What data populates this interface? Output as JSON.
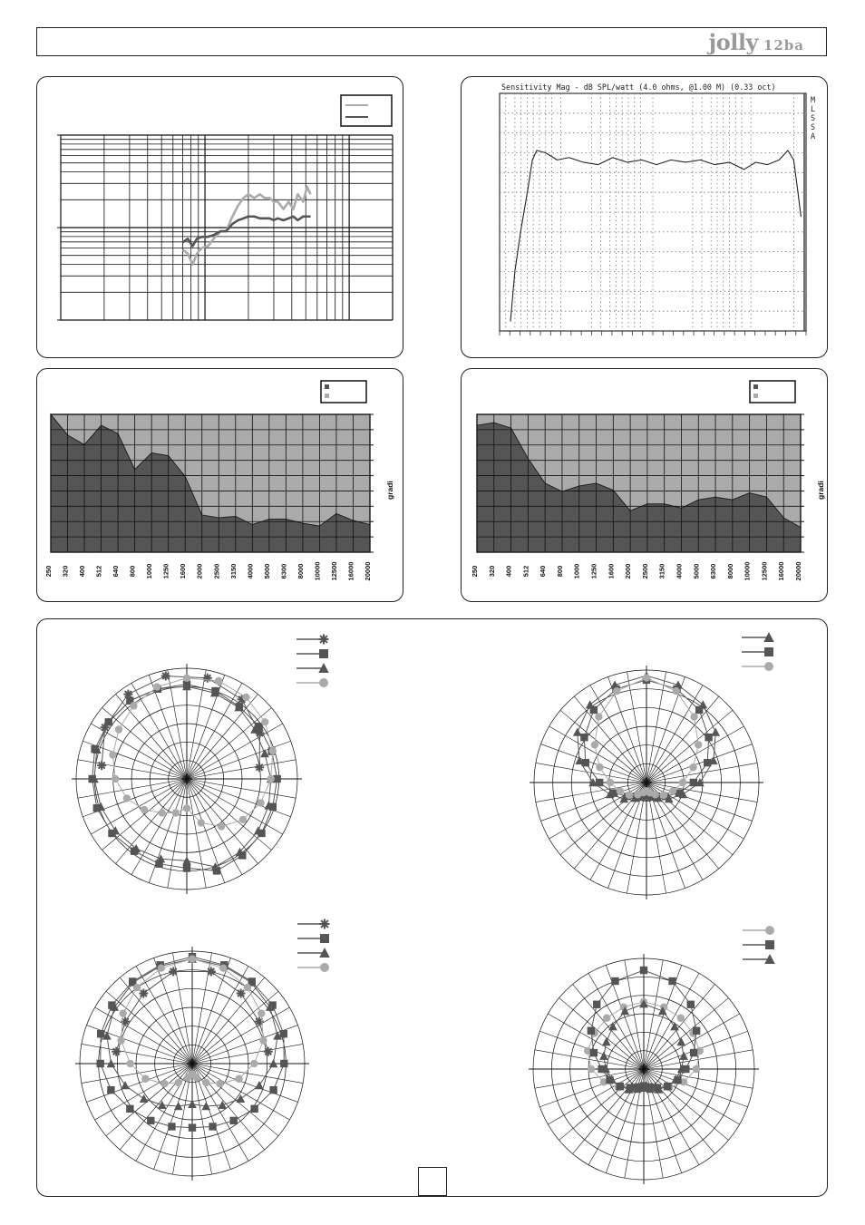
{
  "header": {
    "brand_name": "jolly",
    "brand_model": "12ba"
  },
  "colors": {
    "dark": "#555555",
    "light": "#aaaaaa",
    "grid": "#111111"
  },
  "chart_data": [
    {
      "id": "impedance-log",
      "type": "line",
      "grid": true,
      "x_scale": "log",
      "legend": {
        "placement": "top-right",
        "entries": [
          "",
          ""
        ]
      },
      "series": [
        {
          "color": "#aaaaaa",
          "x": [
            700,
            760,
            820,
            880,
            950,
            1050,
            1150,
            1280,
            1400,
            1550,
            1700,
            1850,
            2000,
            2200,
            2400,
            2600,
            2800,
            3000,
            3200,
            3500,
            3800,
            4100,
            4400,
            4800,
            5100,
            5400
          ],
          "y": [
            0.38,
            0.36,
            0.3,
            0.36,
            0.39,
            0.4,
            0.44,
            0.48,
            0.48,
            0.56,
            0.62,
            0.66,
            0.68,
            0.66,
            0.68,
            0.66,
            0.66,
            0.64,
            0.64,
            0.6,
            0.64,
            0.6,
            0.68,
            0.64,
            0.72,
            0.68
          ]
        },
        {
          "color": "#555555",
          "x": [
            700,
            760,
            820,
            880,
            950,
            1050,
            1150,
            1280,
            1400,
            1550,
            1700,
            1850,
            2000,
            2200,
            2400,
            2600,
            2800,
            3000,
            3200,
            3500,
            3800,
            4100,
            4400,
            4800,
            5100,
            5400
          ],
          "y": [
            0.42,
            0.44,
            0.4,
            0.44,
            0.45,
            0.45,
            0.46,
            0.48,
            0.48,
            0.52,
            0.54,
            0.55,
            0.56,
            0.56,
            0.55,
            0.55,
            0.55,
            0.54,
            0.55,
            0.54,
            0.55,
            0.56,
            0.54,
            0.56,
            0.56,
            0.56
          ]
        }
      ]
    },
    {
      "id": "sensitivity",
      "type": "line",
      "grid": true,
      "title": "Sensitivity Mag - dB SPL/watt (4.0 ohms, @1.00 M) (0.33 oct)",
      "side_letters": [
        "M",
        "L",
        "S",
        "S",
        "A"
      ],
      "x": [
        0,
        0.015,
        0.035,
        0.06,
        0.075,
        0.09,
        0.12,
        0.16,
        0.2,
        0.25,
        0.3,
        0.35,
        0.4,
        0.45,
        0.5,
        0.55,
        0.6,
        0.65,
        0.7,
        0.75,
        0.8,
        0.84,
        0.88,
        0.92,
        0.95,
        0.97,
        0.985,
        0.995
      ],
      "y": [
        0.04,
        0.25,
        0.42,
        0.6,
        0.72,
        0.76,
        0.75,
        0.72,
        0.73,
        0.71,
        0.7,
        0.73,
        0.71,
        0.72,
        0.7,
        0.72,
        0.71,
        0.72,
        0.7,
        0.71,
        0.68,
        0.71,
        0.7,
        0.72,
        0.76,
        0.72,
        0.58,
        0.48
      ]
    },
    {
      "id": "dispersion-horizontal",
      "type": "area",
      "grid": true,
      "ylabel": "gradi",
      "legend": {
        "placement": "top-right",
        "entries": [
          "",
          ""
        ]
      },
      "categories": [
        "250",
        "320",
        "400",
        "512",
        "640",
        "800",
        "1000",
        "1250",
        "1600",
        "2000",
        "2500",
        "3150",
        "4000",
        "5000",
        "6300",
        "8000",
        "10000",
        "12500",
        "16000",
        "20000"
      ],
      "values": [
        1.0,
        0.85,
        0.78,
        0.92,
        0.86,
        0.6,
        0.72,
        0.7,
        0.55,
        0.27,
        0.25,
        0.26,
        0.2,
        0.24,
        0.24,
        0.21,
        0.19,
        0.28,
        0.23,
        0.2
      ],
      "ylim": [
        0,
        1
      ]
    },
    {
      "id": "dispersion-vertical",
      "type": "area",
      "grid": true,
      "ylabel": "gradi",
      "legend": {
        "placement": "top-right",
        "entries": [
          "",
          ""
        ]
      },
      "categories": [
        "250",
        "320",
        "400",
        "512",
        "640",
        "800",
        "1000",
        "1250",
        "1600",
        "2000",
        "2500",
        "3150",
        "4000",
        "5000",
        "6300",
        "8000",
        "10000",
        "12500",
        "16000",
        "20000"
      ],
      "values": [
        0.92,
        0.94,
        0.9,
        0.68,
        0.5,
        0.44,
        0.48,
        0.5,
        0.45,
        0.3,
        0.35,
        0.35,
        0.32,
        0.38,
        0.4,
        0.38,
        0.43,
        0.4,
        0.25,
        0.18
      ],
      "ylim": [
        0,
        1
      ]
    },
    {
      "id": "polar-1",
      "type": "scatter",
      "coordinates": "polar",
      "legend": {
        "placement": "top-right",
        "markers": [
          "star",
          "square",
          "triangle",
          "circle"
        ]
      },
      "series": [
        {
          "marker": "star",
          "color": "#555555",
          "r": [
            0.82,
            0.92,
            0.98,
            1.0,
            0.98,
            0.92,
            0.82,
            0.7
          ]
        },
        {
          "marker": "square",
          "color": "#555555",
          "r": [
            0.85,
            0.85,
            0.85,
            0.88,
            0.9,
            0.9,
            0.92,
            0.92,
            0.92,
            0.9,
            0.9,
            0.88,
            0.85,
            0.85,
            0.85,
            0.86,
            0.86,
            0.88,
            0.9,
            0.92
          ]
        },
        {
          "marker": "triangle",
          "color": "#555555",
          "r": [
            0.78,
            0.8,
            0.82,
            0.84,
            0.86,
            0.88,
            0.9,
            0.92,
            0.92,
            0.9,
            0.88,
            0.86,
            0.84,
            0.8,
            0.78,
            0.8,
            0.82,
            0.84,
            0.86,
            0.88
          ]
        },
        {
          "marker": "circle",
          "color": "#aaaaaa",
          "r": [
            0.28,
            0.34,
            0.4,
            0.5,
            0.6,
            0.68,
            0.74,
            0.8,
            0.86,
            0.92,
            0.96,
            0.98,
            0.96,
            0.92,
            0.86,
            0.8,
            0.74,
            0.66,
            0.56,
            0.44
          ]
        }
      ]
    },
    {
      "id": "polar-2",
      "type": "scatter",
      "coordinates": "polar",
      "legend": {
        "placement": "top-right",
        "markers": [
          "triangle",
          "square",
          "circle"
        ]
      },
      "series": [
        {
          "marker": "triangle",
          "color": "#555555",
          "r": [
            0.12,
            0.14,
            0.18,
            0.26,
            0.36,
            0.5,
            0.66,
            0.8,
            0.9,
            0.96,
            1.0,
            0.96,
            0.9,
            0.8,
            0.66,
            0.5,
            0.36,
            0.26,
            0.18,
            0.14
          ]
        },
        {
          "marker": "square",
          "color": "#555555",
          "r": [
            0.1,
            0.12,
            0.16,
            0.22,
            0.32,
            0.44,
            0.6,
            0.72,
            0.84,
            0.92,
            0.96,
            0.92,
            0.84,
            0.72,
            0.6,
            0.44,
            0.32,
            0.22,
            0.16,
            0.12
          ]
        },
        {
          "marker": "circle",
          "color": "#aaaaaa",
          "r": [
            0.08,
            0.1,
            0.14,
            0.2,
            0.26,
            0.34,
            0.46,
            0.6,
            0.76,
            0.9,
            0.98,
            0.9,
            0.76,
            0.6,
            0.46,
            0.34,
            0.26,
            0.2,
            0.14,
            0.1
          ]
        }
      ]
    },
    {
      "id": "polar-3",
      "type": "scatter",
      "coordinates": "polar",
      "legend": {
        "placement": "top-right",
        "markers": [
          "star",
          "square",
          "triangle",
          "circle"
        ]
      },
      "series": [
        {
          "marker": "star",
          "color": "#555555",
          "r": [
            0.72,
            0.74,
            0.8,
            0.88,
            0.88,
            0.8,
            0.74,
            0.72
          ]
        },
        {
          "marker": "square",
          "color": "#555555",
          "r": [
            0.6,
            0.62,
            0.66,
            0.72,
            0.8,
            0.86,
            0.9,
            0.93,
            0.95,
            0.97,
            1.0,
            0.97,
            0.95,
            0.93,
            0.9,
            0.86,
            0.8,
            0.72,
            0.66,
            0.62
          ]
        },
        {
          "marker": "triangle",
          "color": "#555555",
          "r": [
            0.38,
            0.42,
            0.48,
            0.56,
            0.66,
            0.76,
            0.84,
            0.9,
            0.94,
            0.96,
            0.98,
            0.96,
            0.94,
            0.9,
            0.84,
            0.76,
            0.66,
            0.56,
            0.48,
            0.42
          ]
        },
        {
          "marker": "circle",
          "color": "#aaaaaa",
          "r": [
            0.1,
            0.14,
            0.22,
            0.32,
            0.46,
            0.58,
            0.7,
            0.8,
            0.88,
            0.94,
            0.98,
            0.94,
            0.88,
            0.8,
            0.7,
            0.58,
            0.46,
            0.32,
            0.22,
            0.14
          ]
        }
      ]
    },
    {
      "id": "polar-4",
      "type": "scatter",
      "coordinates": "polar",
      "legend": {
        "placement": "top-right",
        "markers": [
          "circle",
          "square",
          "triangle"
        ]
      },
      "series": [
        {
          "marker": "circle",
          "color": "#aaaaaa",
          "r": [
            0.16,
            0.18,
            0.22,
            0.3,
            0.4,
            0.5,
            0.56,
            0.58,
            0.6,
            0.62,
            0.64,
            0.62,
            0.6,
            0.58,
            0.56,
            0.5,
            0.4,
            0.3,
            0.22,
            0.18
          ]
        },
        {
          "marker": "square",
          "color": "#555555",
          "r": [
            0.16,
            0.18,
            0.22,
            0.28,
            0.34,
            0.4,
            0.5,
            0.62,
            0.76,
            0.88,
            0.94,
            0.88,
            0.76,
            0.62,
            0.5,
            0.4,
            0.34,
            0.28,
            0.22,
            0.18
          ]
        },
        {
          "marker": "triangle",
          "color": "#555555",
          "r": [
            0.18,
            0.2,
            0.24,
            0.28,
            0.32,
            0.36,
            0.4,
            0.44,
            0.5,
            0.58,
            0.62,
            0.58,
            0.5,
            0.44,
            0.4,
            0.36,
            0.32,
            0.28,
            0.24,
            0.2
          ]
        }
      ]
    }
  ]
}
